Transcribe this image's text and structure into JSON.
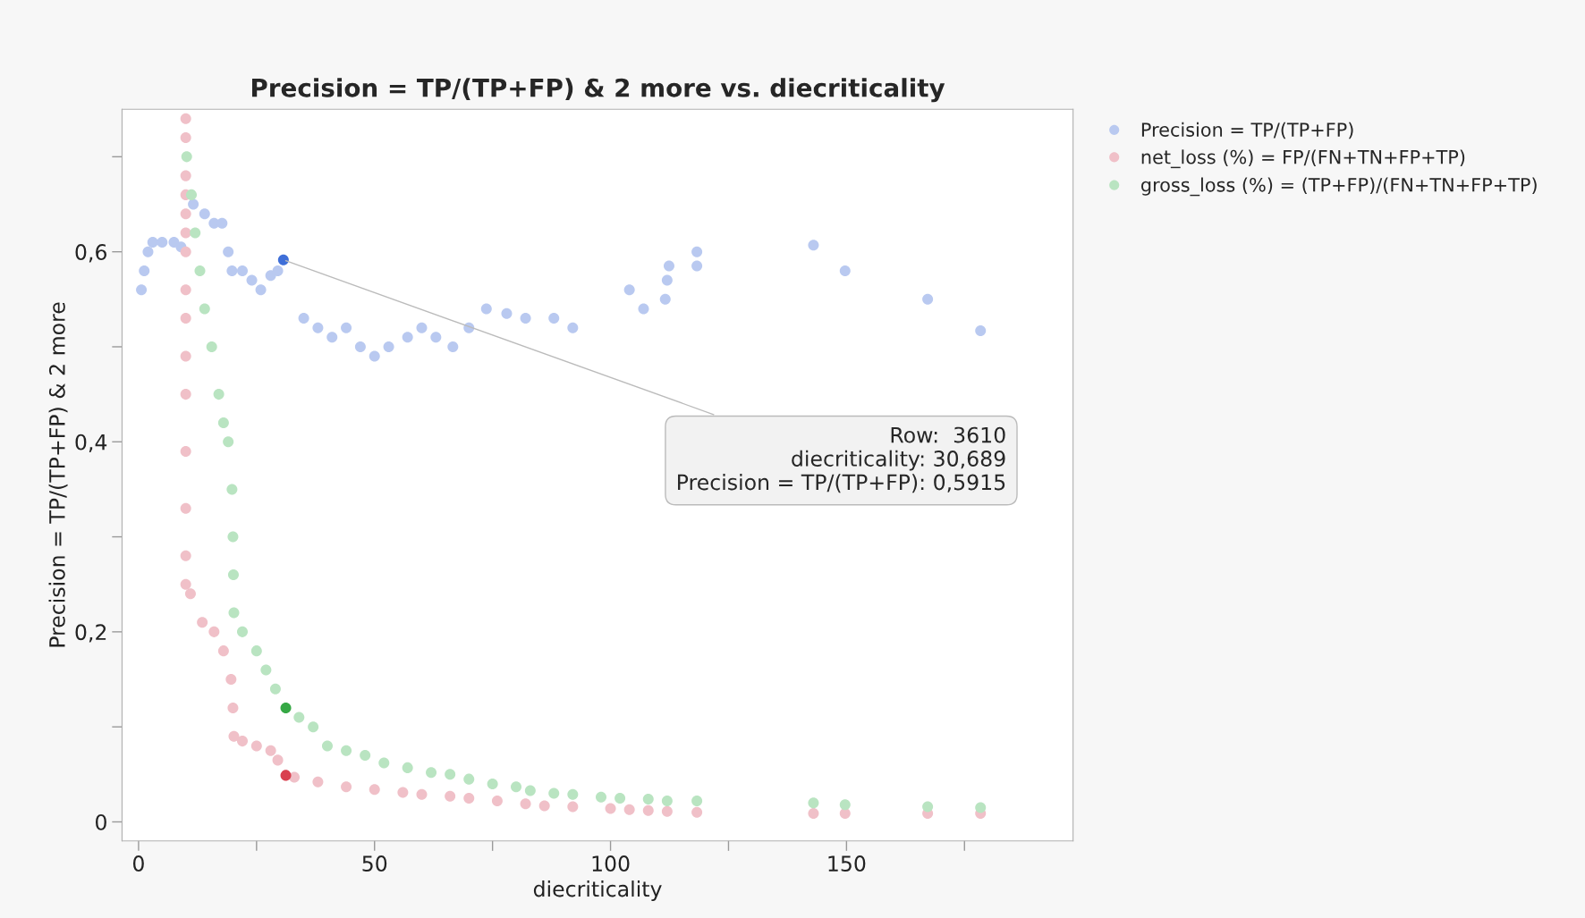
{
  "chart_data": {
    "type": "scatter",
    "title": "Precision = TP/(TP+FP) & 2 more vs. diecriticality",
    "xlabel": "diecriticality",
    "ylabel": "Precision = TP/(TP+FP) & 2 more",
    "xlim": [
      -3.5,
      198
    ],
    "ylim": [
      -0.02,
      0.75
    ],
    "xticks": [
      0,
      {
        "value": 25,
        "label": null
      },
      50,
      {
        "value": 75,
        "label": null
      },
      100,
      {
        "value": 125,
        "label": null
      },
      150,
      {
        "value": 175,
        "label": null
      }
    ],
    "yticks": [
      {
        "value": 0,
        "label": "0"
      },
      {
        "value": 0.1,
        "label": null
      },
      {
        "value": 0.2,
        "label": "0,2"
      },
      {
        "value": 0.3,
        "label": null
      },
      {
        "value": 0.4,
        "label": "0,4"
      },
      {
        "value": 0.5,
        "label": null
      },
      {
        "value": 0.6,
        "label": "0,6"
      },
      {
        "value": 0.7,
        "label": null
      }
    ],
    "grid": false,
    "legend": "top right",
    "marker": "circle",
    "series": [
      {
        "name": "Precision = TP/(TP+FP)",
        "color": "#b9c9f0",
        "x": [
          0.6,
          1.2,
          2,
          3,
          5,
          7.5,
          9,
          11.6,
          14,
          16,
          17.7,
          19,
          19.8,
          22,
          24,
          25.9,
          28,
          29.5,
          35,
          38,
          41,
          44,
          47,
          50,
          53,
          57,
          60,
          63,
          66.6,
          70,
          73.7,
          78,
          82,
          88,
          92,
          104,
          107,
          111.6,
          112,
          112.4,
          118.3,
          118.3,
          143,
          149.7,
          167.2,
          178.4
        ],
        "values": [
          0.56,
          0.58,
          0.6,
          0.61,
          0.61,
          0.61,
          0.605,
          0.65,
          0.64,
          0.63,
          0.63,
          0.6,
          0.58,
          0.58,
          0.57,
          0.56,
          0.575,
          0.58,
          0.53,
          0.52,
          0.51,
          0.52,
          0.5,
          0.49,
          0.5,
          0.51,
          0.52,
          0.51,
          0.5,
          0.52,
          0.54,
          0.535,
          0.53,
          0.53,
          0.52,
          0.56,
          0.54,
          0.55,
          0.57,
          0.585,
          0.585,
          0.6,
          0.607,
          0.58,
          0.55,
          0.517
        ]
      },
      {
        "name": "net_loss (%) = FP/(FN+TN+FP+TP)",
        "color": "#f0c0c8",
        "x": [
          10,
          10,
          10,
          10,
          10,
          10,
          10,
          10,
          10,
          10,
          10,
          10,
          10,
          10,
          10,
          11,
          13.5,
          16,
          18,
          19.6,
          20,
          20.2,
          22,
          25,
          28,
          29.5,
          33,
          38,
          44,
          50,
          56,
          60,
          66,
          70,
          76,
          82,
          86,
          92,
          100,
          104,
          108,
          112,
          118.3,
          143,
          149.7,
          167.2,
          178.4
        ],
        "values": [
          0.74,
          0.72,
          0.68,
          0.66,
          0.64,
          0.62,
          0.6,
          0.56,
          0.53,
          0.49,
          0.45,
          0.39,
          0.33,
          0.28,
          0.25,
          0.24,
          0.21,
          0.2,
          0.18,
          0.15,
          0.12,
          0.09,
          0.085,
          0.08,
          0.075,
          0.065,
          0.047,
          0.042,
          0.037,
          0.034,
          0.031,
          0.029,
          0.027,
          0.025,
          0.022,
          0.019,
          0.017,
          0.016,
          0.014,
          0.013,
          0.012,
          0.011,
          0.01,
          0.009,
          0.009,
          0.009,
          0.009
        ]
      },
      {
        "name": "gross_loss (%) = (TP+FP)/(FN+TN+FP+TP)",
        "color": "#b9e4c1",
        "x": [
          10.2,
          11.2,
          12,
          13,
          14,
          15.5,
          17,
          18,
          19,
          19.8,
          20,
          20.1,
          20.2,
          22,
          25,
          27,
          29,
          34,
          37,
          40,
          44,
          48,
          52,
          57,
          62,
          66,
          70,
          75,
          80,
          83,
          88,
          92,
          98,
          102,
          108,
          112,
          118.3,
          143,
          149.7,
          167.2,
          178.4
        ],
        "values": [
          0.7,
          0.66,
          0.62,
          0.58,
          0.54,
          0.5,
          0.45,
          0.42,
          0.4,
          0.35,
          0.3,
          0.26,
          0.22,
          0.2,
          0.18,
          0.16,
          0.14,
          0.11,
          0.1,
          0.08,
          0.075,
          0.07,
          0.062,
          0.057,
          0.052,
          0.05,
          0.045,
          0.04,
          0.037,
          0.033,
          0.03,
          0.029,
          0.026,
          0.025,
          0.024,
          0.022,
          0.022,
          0.02,
          0.018,
          0.016,
          0.015
        ]
      },
      {
        "color": "#3f6fd8",
        "x": [
          30.689
        ],
        "values": [
          0.5915
        ]
      },
      {
        "color": "#d9404f",
        "x": [
          31.2
        ],
        "values": [
          0.049
        ]
      },
      {
        "color": "#36a845",
        "x": [
          31.2
        ],
        "values": [
          0.12
        ]
      }
    ],
    "annotations": [
      {
        "text": "Row:  3610\ndiecriticality: 30,689\nPrecision = TP/(TP+FP): 0,5915",
        "x": 30.689,
        "y": 0.5915
      }
    ]
  }
}
